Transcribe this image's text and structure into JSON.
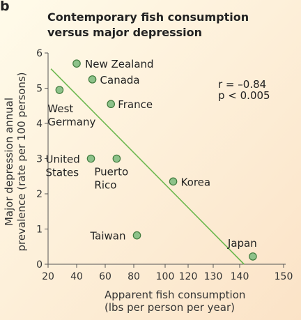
{
  "panel_label": "b",
  "chart_data": {
    "type": "scatter",
    "title": [
      "Contemporary fish consumption",
      "versus major depression"
    ],
    "xlabel": [
      "Apparent fish consumption",
      "(lbs per person per year)"
    ],
    "ylabel": [
      "Major depression annual",
      "prevalence (rate per 100 persons)"
    ],
    "xlim": [
      20,
      150
    ],
    "ylim": [
      0,
      6
    ],
    "xticks": [
      20,
      40,
      60,
      80,
      100,
      120,
      130,
      140,
      150
    ],
    "yticks": [
      0,
      1,
      2,
      3,
      4,
      5,
      6
    ],
    "points": [
      {
        "label": [
          "New Zealand"
        ],
        "x": 40,
        "y": 5.7
      },
      {
        "label": [
          "Canada"
        ],
        "x": 51,
        "y": 5.25
      },
      {
        "label": [
          "West",
          "Germany"
        ],
        "x": 28,
        "y": 4.95
      },
      {
        "label": [
          "France"
        ],
        "x": 64,
        "y": 4.55
      },
      {
        "label": [
          "United",
          "States"
        ],
        "x": 50,
        "y": 3.0
      },
      {
        "label": [
          "Puerto",
          "Rico"
        ],
        "x": 68,
        "y": 3.0
      },
      {
        "label": [
          "Korea"
        ],
        "x": 107,
        "y": 2.35
      },
      {
        "label": [
          "Taiwan"
        ],
        "x": 82,
        "y": 0.82
      },
      {
        "label": [
          "Japan"
        ],
        "x": 143,
        "y": 0.22
      }
    ],
    "trendline": {
      "x1": 22,
      "y1": 5.55,
      "x2": 141,
      "y2": 0.0
    },
    "annotations": [
      "r = –0.84",
      "p < 0.005"
    ],
    "colors": {
      "point_fill": "#8dc28a",
      "point_stroke": "#3f7a3c",
      "trendline": "#6db84f",
      "background_start": "#fffbea",
      "background_end": "#fbe3c7"
    }
  }
}
